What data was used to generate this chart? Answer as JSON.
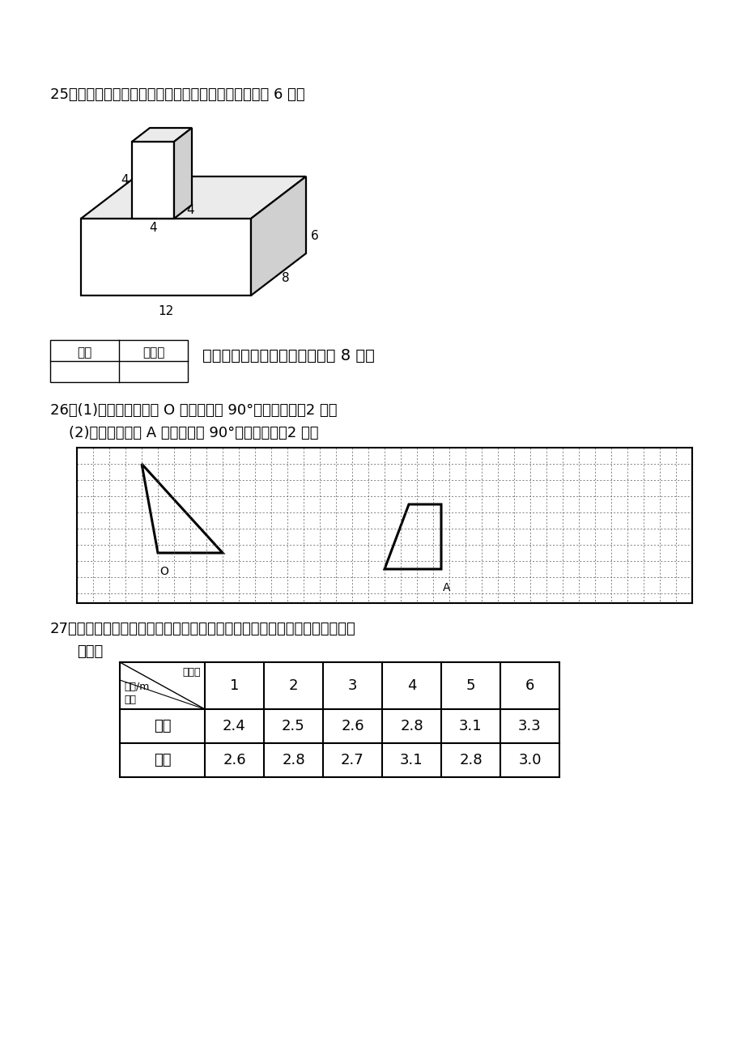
{
  "q25_text": "25．求下面图形的表面积和体积（单位：分米）。（共 6 分）",
  "section_header_text": "五、动手动脑，操作实践。（共 8 分）",
  "score_col1": "得分",
  "score_col2": "评卷人",
  "q26_text1": "26．(1)画出三角形绕点 O 逆时针旋转 90°后的图形。（2 分）",
  "q26_text2": "    (2)画出梯形绕点 A 顺时针旋转 90°后的图形。（2 分）",
  "q27_text1": "27．陈亮和王明为了参加学校跳远比赛，提前几天进行训练，每天的平均成绩",
  "q27_text2": "如下。",
  "table_row1_name": "陈亮",
  "table_row1_data": [
    "2.4",
    "2.5",
    "2.6",
    "2.8",
    "3.1",
    "3.3"
  ],
  "table_row2_name": "王明",
  "table_row2_data": [
    "2.6",
    "2.8",
    "2.7",
    "3.1",
    "2.8",
    "3.0"
  ],
  "header_label1": "第几天",
  "header_label2": "成绩/m",
  "header_label3": "姓名",
  "days": [
    "1",
    "2",
    "3",
    "4",
    "5",
    "6"
  ]
}
